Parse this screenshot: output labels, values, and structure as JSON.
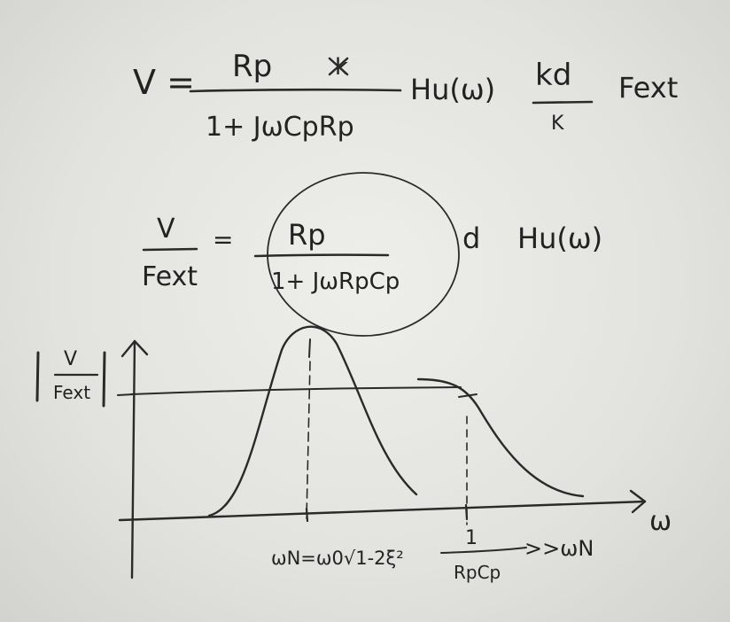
{
  "equation1": {
    "lhs": "V =",
    "numerator": "Rp",
    "numerator_scribble": "k",
    "denominator": "1+ JωCpRp",
    "factor_h": "Hu(ω)",
    "kd_num": "kd",
    "kd_den": "K",
    "fext": "Fext"
  },
  "equation2": {
    "lhs_num": "V",
    "lhs_den": "Fext",
    "equals": "=",
    "numerator": "Rp",
    "denominator": "1+ JωRpCp",
    "d": "d",
    "h": "Hu(ω)"
  },
  "graph": {
    "y_label_num": "V",
    "y_label_den": "Fext",
    "x_label": "ω",
    "wn_label": "ωN=ω0√1-2ξ²",
    "cut_num": "1",
    "cut_den": "RpCp",
    "cut_compare": ">>ωN"
  }
}
